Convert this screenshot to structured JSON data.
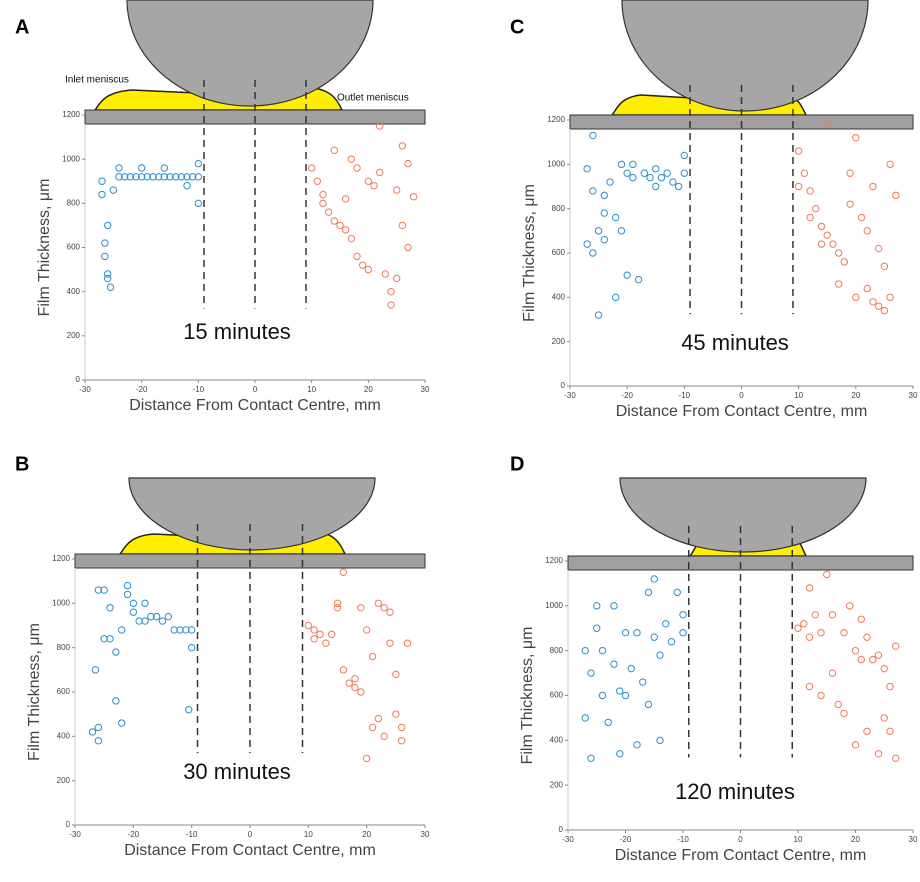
{
  "chart_data": [
    {
      "type": "scatter",
      "panel_label": "A",
      "annotation": "15 minutes",
      "labels": [
        "Inlet meniscus",
        "Outlet meniscus"
      ],
      "xlabel": "Distance From Contact Centre, mm",
      "ylabel": "Film Thickness, μm",
      "xlim": [
        -30,
        30
      ],
      "ylim": [
        0,
        1200
      ],
      "xticks": [
        -30,
        -20,
        -10,
        0,
        10,
        20,
        30
      ],
      "yticks": [
        0,
        200,
        400,
        600,
        800,
        1000,
        1200
      ],
      "vlines": [
        -9,
        0,
        9
      ],
      "series": [
        {
          "color": "#2a8fc9",
          "x": [
            -27,
            -26.5,
            -26,
            -26,
            -25.5,
            -25,
            -24,
            -23,
            -22,
            -21,
            -20,
            -19,
            -18,
            -17,
            -16,
            -15,
            -14,
            -13,
            -12,
            -11,
            -10,
            -10,
            -10,
            -24,
            -20,
            -16,
            -12,
            -26,
            -27,
            -26.5
          ],
          "values": [
            900,
            620,
            480,
            460,
            420,
            860,
            920,
            920,
            920,
            920,
            920,
            920,
            920,
            920,
            920,
            920,
            920,
            920,
            920,
            920,
            920,
            980,
            800,
            960,
            960,
            960,
            880,
            700,
            840,
            560
          ]
        },
        {
          "color": "#f07a56",
          "x": [
            10,
            11,
            12,
            12,
            13,
            14,
            15,
            16,
            17,
            17,
            18,
            19,
            20,
            21,
            22,
            22,
            23,
            24,
            25,
            25,
            26,
            27,
            27,
            28,
            20,
            18,
            14,
            24,
            26,
            16
          ],
          "values": [
            960,
            900,
            840,
            800,
            760,
            720,
            700,
            680,
            1000,
            640,
            560,
            520,
            900,
            880,
            940,
            1150,
            480,
            400,
            860,
            460,
            1060,
            980,
            600,
            830,
            500,
            960,
            1040,
            340,
            700,
            820
          ]
        }
      ]
    },
    {
      "type": "scatter",
      "panel_label": "B",
      "annotation": "30 minutes",
      "xlabel": "Distance From Contact Centre, mm",
      "ylabel": "Film Thickness, μm",
      "xlim": [
        -30,
        30
      ],
      "ylim": [
        0,
        1200
      ],
      "xticks": [
        -30,
        -20,
        -10,
        0,
        10,
        20,
        30
      ],
      "yticks": [
        0,
        200,
        400,
        600,
        800,
        1000,
        1200
      ],
      "vlines": [
        -9,
        0,
        9
      ],
      "series": [
        {
          "color": "#2a8fc9",
          "x": [
            -27,
            -26.5,
            -26,
            -26,
            -25,
            -25,
            -24,
            -24,
            -23,
            -22,
            -22,
            -21,
            -20,
            -20,
            -19,
            -18,
            -17,
            -16,
            -15,
            -14,
            -13,
            -12,
            -11,
            -10,
            -10,
            -26,
            -23,
            -21,
            -18,
            -10.5
          ],
          "values": [
            420,
            700,
            380,
            1060,
            840,
            1060,
            840,
            980,
            780,
            880,
            460,
            1080,
            960,
            1000,
            920,
            920,
            940,
            940,
            920,
            940,
            880,
            880,
            880,
            880,
            800,
            440,
            560,
            1040,
            1000,
            520
          ]
        },
        {
          "color": "#f07a56",
          "x": [
            10,
            11,
            11,
            12,
            13,
            14,
            15,
            16,
            16,
            17,
            18,
            19,
            19,
            20,
            21,
            21,
            22,
            22,
            23,
            24,
            24,
            25,
            25,
            26,
            26,
            27,
            15,
            18,
            20,
            23
          ],
          "values": [
            900,
            880,
            840,
            860,
            820,
            860,
            1000,
            700,
            1140,
            640,
            660,
            600,
            980,
            300,
            440,
            760,
            480,
            1000,
            400,
            820,
            960,
            680,
            500,
            440,
            380,
            820,
            980,
            620,
            880,
            980
          ]
        }
      ]
    },
    {
      "type": "scatter",
      "panel_label": "C",
      "annotation": "45 minutes",
      "xlabel": "Distance From Contact Centre, mm",
      "ylabel": "Film Thickness, μm",
      "xlim": [
        -30,
        30
      ],
      "ylim": [
        0,
        1200
      ],
      "xticks": [
        -30,
        -20,
        -10,
        0,
        10,
        20,
        30
      ],
      "yticks": [
        0,
        200,
        400,
        600,
        800,
        1000,
        1200
      ],
      "vlines": [
        -9,
        0,
        9
      ],
      "series": [
        {
          "color": "#2a8fc9",
          "x": [
            -27,
            -27,
            -26,
            -26,
            -25,
            -25,
            -24,
            -24,
            -23,
            -22,
            -22,
            -21,
            -20,
            -20,
            -19,
            -18,
            -17,
            -16,
            -15,
            -14,
            -13,
            -12,
            -11,
            -10,
            -10,
            -26,
            -24,
            -21,
            -19,
            -15
          ],
          "values": [
            640,
            980,
            600,
            1130,
            320,
            700,
            860,
            660,
            920,
            760,
            400,
            700,
            960,
            500,
            1000,
            480,
            960,
            940,
            980,
            940,
            960,
            920,
            900,
            1040,
            960,
            880,
            780,
            1000,
            940,
            900
          ]
        },
        {
          "color": "#f07a56",
          "x": [
            10,
            10,
            11,
            12,
            13,
            14,
            15,
            15,
            16,
            17,
            18,
            19,
            20,
            20,
            21,
            22,
            22,
            23,
            23,
            24,
            24,
            25,
            25,
            26,
            26,
            12,
            17,
            19,
            14,
            27
          ],
          "values": [
            1060,
            900,
            960,
            880,
            800,
            720,
            680,
            1180,
            640,
            600,
            560,
            820,
            1120,
            400,
            760,
            700,
            440,
            380,
            900,
            360,
            620,
            340,
            540,
            400,
            1000,
            760,
            460,
            960,
            640,
            860
          ]
        }
      ]
    },
    {
      "type": "scatter",
      "panel_label": "D",
      "annotation": "120 minutes",
      "xlabel": "Distance From Contact Centre, mm",
      "ylabel": "Film Thickness, μm",
      "xlim": [
        -30,
        30
      ],
      "ylim": [
        0,
        1200
      ],
      "xticks": [
        -30,
        -20,
        -10,
        0,
        10,
        20,
        30
      ],
      "yticks": [
        0,
        200,
        400,
        600,
        800,
        1000,
        1200
      ],
      "vlines": [
        -9,
        0,
        9
      ],
      "series": [
        {
          "color": "#2a8fc9",
          "x": [
            -27,
            -27,
            -26,
            -26,
            -25,
            -24,
            -24,
            -23,
            -22,
            -22,
            -21,
            -20,
            -20,
            -19,
            -18,
            -17,
            -16,
            -16,
            -15,
            -14,
            -14,
            -13,
            -12,
            -11,
            -10,
            -10,
            -25,
            -21,
            -18,
            -15
          ],
          "values": [
            500,
            800,
            700,
            320,
            1000,
            600,
            800,
            480,
            740,
            1000,
            340,
            880,
            600,
            720,
            880,
            660,
            1060,
            560,
            1120,
            780,
            400,
            920,
            840,
            1060,
            960,
            880,
            900,
            620,
            380,
            860
          ]
        },
        {
          "color": "#f07a56",
          "x": [
            10,
            11,
            12,
            12,
            13,
            14,
            14,
            15,
            16,
            16,
            17,
            18,
            19,
            20,
            20,
            21,
            22,
            22,
            23,
            24,
            24,
            25,
            25,
            26,
            26,
            27,
            12,
            18,
            21,
            27
          ],
          "values": [
            900,
            920,
            860,
            640,
            960,
            600,
            880,
            1140,
            700,
            960,
            560,
            880,
            1000,
            800,
            380,
            760,
            860,
            440,
            760,
            780,
            340,
            500,
            720,
            640,
            440,
            820,
            1080,
            520,
            940,
            320
          ]
        }
      ]
    }
  ]
}
